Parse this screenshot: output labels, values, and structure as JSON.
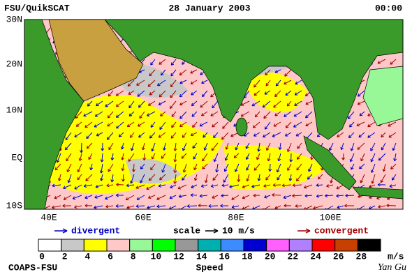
{
  "header": {
    "left": "FSU/QuikSCAT",
    "center": "28 January 2003",
    "right": "00:00"
  },
  "map": {
    "lat_labels": [
      "30N",
      "20N",
      "10N",
      "EQ",
      "10S"
    ],
    "lon_labels": [
      "40E",
      "60E",
      "80E",
      "100E"
    ]
  },
  "legend": {
    "divergent": "divergent",
    "scale": "scale",
    "scale_value": "10 m/s",
    "convergent": "convergent"
  },
  "colorbar": {
    "ticks": [
      0,
      2,
      4,
      6,
      8,
      10,
      12,
      14,
      16,
      18,
      20,
      22,
      24,
      26,
      28
    ],
    "unit": "m/s",
    "label": "Speed",
    "colors": [
      "#ffffff",
      "#c8c8c8",
      "#ffff00",
      "#ffc8c8",
      "#98f898",
      "#00ff00",
      "#989898",
      "#00b0b0",
      "#3c8cff",
      "#0000d0",
      "#ff60ff",
      "#b080ff",
      "#ff0000",
      "#c84000",
      "#000000"
    ]
  },
  "footer": {
    "left": "COAPS-FSU",
    "right": "Yan Gu"
  }
}
